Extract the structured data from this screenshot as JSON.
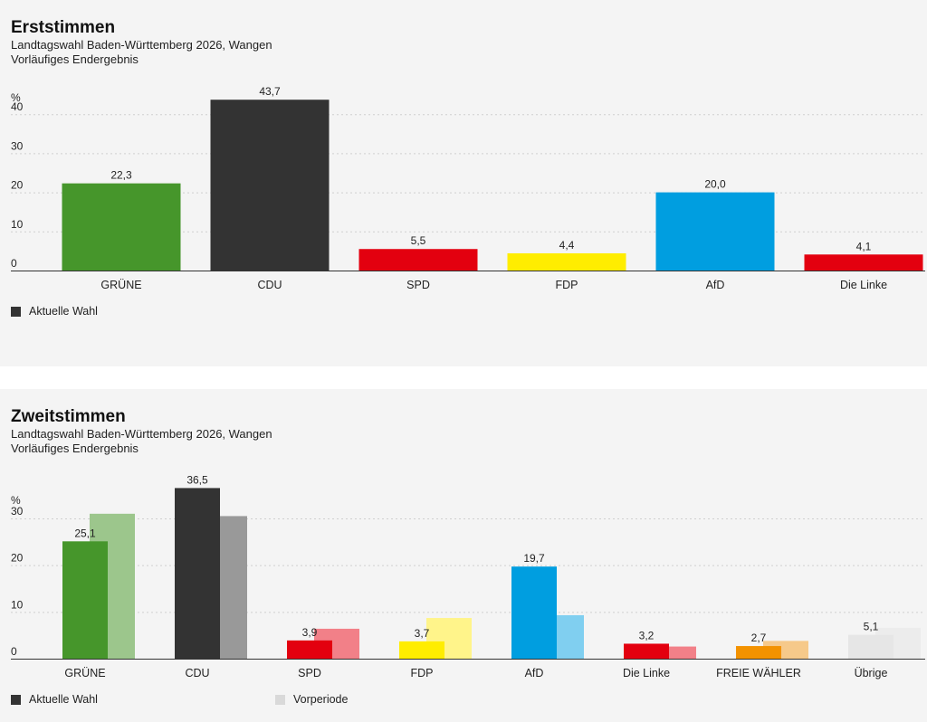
{
  "colors": {
    "background": "#f4f4f4",
    "gruene": "#46962b",
    "cdu": "#333333",
    "spd": "#e3000f",
    "fdp": "#ffed00",
    "afd": "#009ee0",
    "linke": "#e3000f",
    "fw": "#f39200",
    "uebrige": "#e6e6e6",
    "gruene_prev": "#9cc68c",
    "cdu_prev": "#999999",
    "spd_prev": "#f28088",
    "fdp_prev": "#fff48a",
    "afd_prev": "#80cff0",
    "linke_prev": "#f28088",
    "fw_prev": "#f6c98a",
    "uebrige_prev": "#ececec"
  },
  "chart_data": [
    {
      "type": "bar",
      "title": "Erststimmen",
      "subtitle": "Landtagswahl Baden-Württemberg 2026, Wangen",
      "status": "Vorläufiges Endergebnis",
      "ylabel": "%",
      "ylim": [
        0,
        45
      ],
      "yticks": [
        "0",
        "10",
        "20",
        "30",
        "40"
      ],
      "grid": true,
      "categories": [
        "GRÜNE",
        "CDU",
        "SPD",
        "FDP",
        "AfD",
        "Die Linke"
      ],
      "series": [
        {
          "name": "Aktuelle Wahl",
          "values": [
            22.3,
            43.7,
            5.5,
            4.4,
            20.0,
            4.1
          ],
          "labels": [
            "22,3",
            "43,7",
            "5,5",
            "4,4",
            "20,0",
            "4,1"
          ],
          "colors": [
            "#46962b",
            "#333333",
            "#e3000f",
            "#ffed00",
            "#009ee0",
            "#e3000f"
          ]
        }
      ],
      "legend": [
        "Aktuelle Wahl"
      ]
    },
    {
      "type": "bar",
      "title": "Zweitstimmen",
      "subtitle": "Landtagswahl Baden-Württemberg 2026, Wangen",
      "status": "Vorläufiges Endergebnis",
      "ylabel": "%",
      "ylim": [
        0,
        36
      ],
      "yticks": [
        "0",
        "10",
        "20",
        "30"
      ],
      "grid": true,
      "categories": [
        "GRÜNE",
        "CDU",
        "SPD",
        "FDP",
        "AfD",
        "Die Linke",
        "FREIE WÄHLER",
        "Übrige"
      ],
      "series": [
        {
          "name": "Aktuelle Wahl",
          "values": [
            25.1,
            36.5,
            3.9,
            3.7,
            19.7,
            3.2,
            2.7,
            5.1
          ],
          "labels": [
            "25,1",
            "36,5",
            "3,9",
            "3,7",
            "19,7",
            "3,2",
            "2,7",
            "5,1"
          ],
          "colors": [
            "#46962b",
            "#333333",
            "#e3000f",
            "#ffed00",
            "#009ee0",
            "#e3000f",
            "#f39200",
            "#e6e6e6"
          ]
        },
        {
          "name": "Vorperiode",
          "values": [
            31.0,
            30.5,
            6.4,
            8.7,
            9.3,
            2.6,
            3.8,
            6.6
          ],
          "colors": [
            "#9cc68c",
            "#999999",
            "#f28088",
            "#fff48a",
            "#80cff0",
            "#f28088",
            "#f6c98a",
            "#ececec"
          ]
        }
      ],
      "legend": [
        "Aktuelle Wahl",
        "Vorperiode"
      ]
    }
  ]
}
